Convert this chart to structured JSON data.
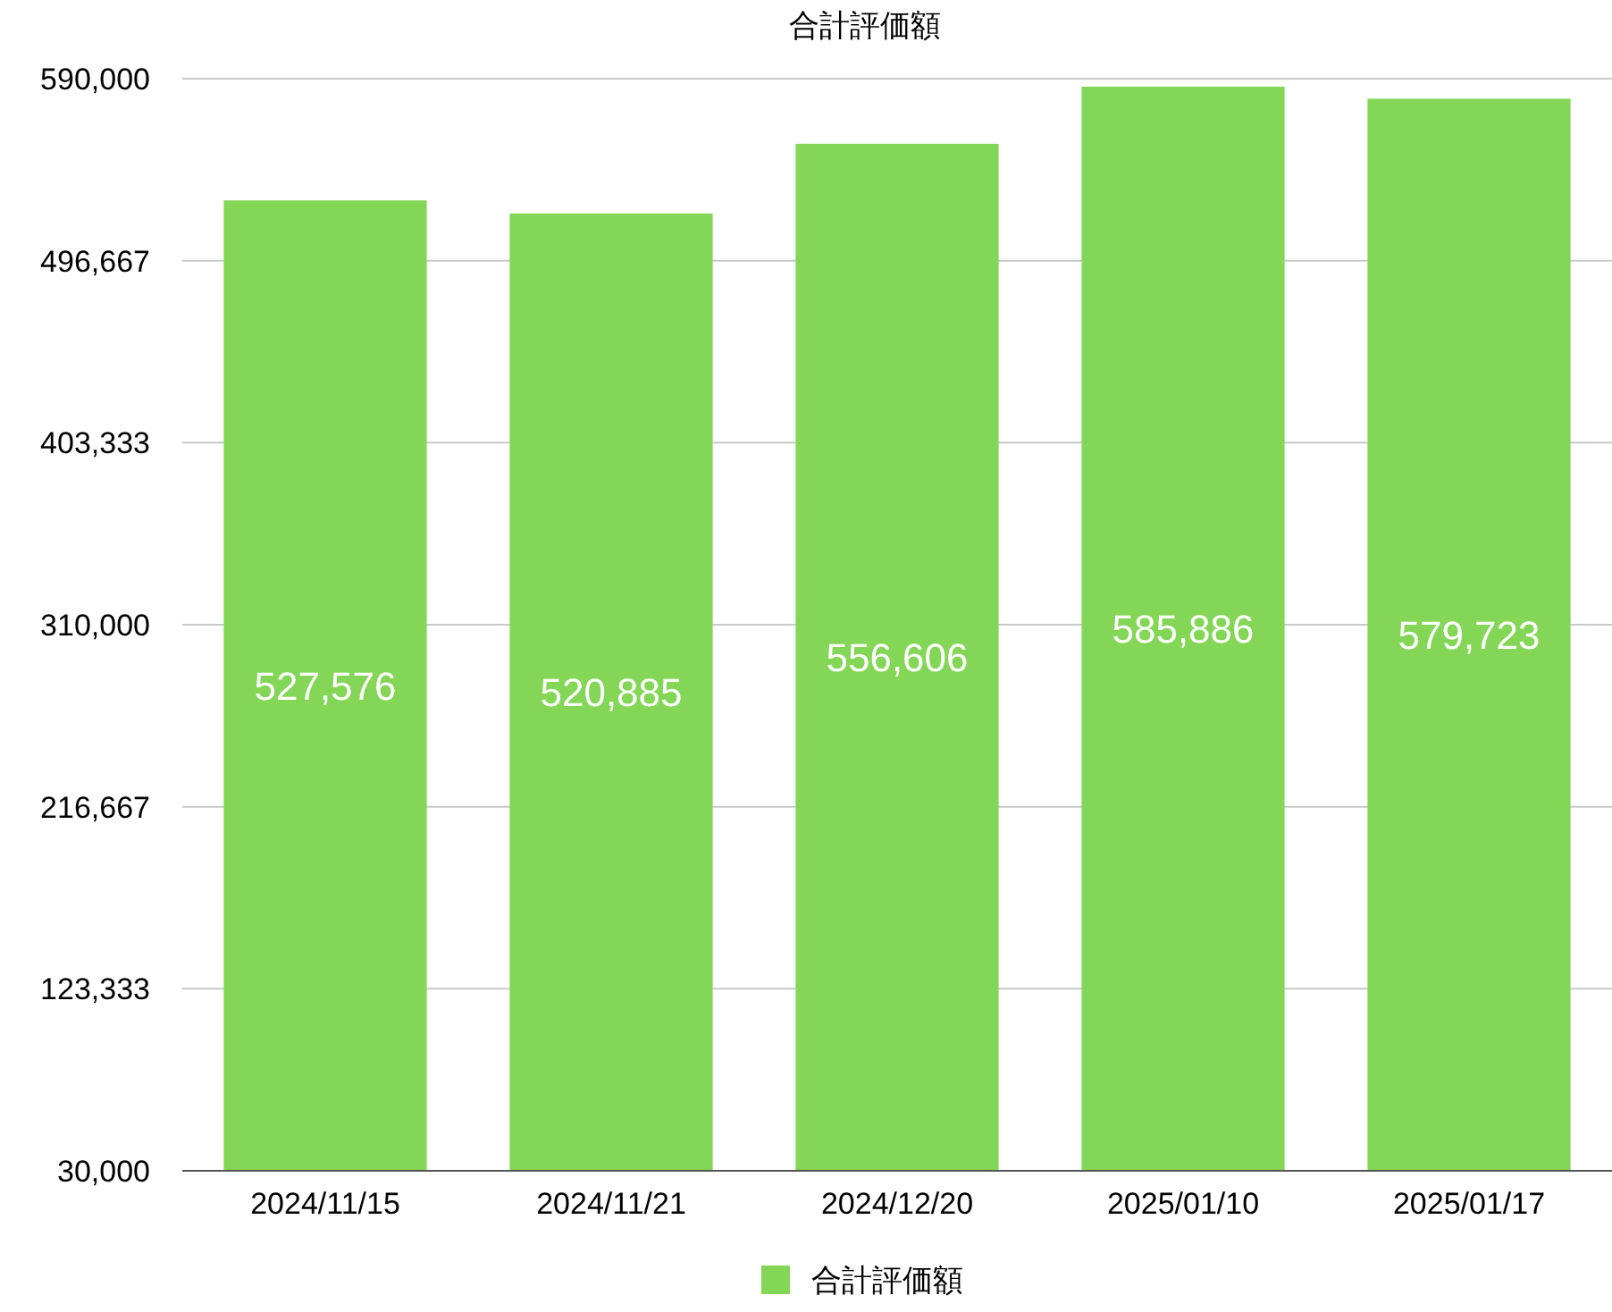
{
  "chart_data": {
    "type": "bar",
    "title": "合計評価額",
    "categories": [
      "2024/11/15",
      "2024/11/21",
      "2024/12/20",
      "2025/01/10",
      "2025/01/17"
    ],
    "series": [
      {
        "name": "合計評価額",
        "color": "#84d657",
        "values": [
          527576,
          520885,
          556606,
          585886,
          579723
        ],
        "value_labels": [
          "527,576",
          "520,885",
          "556,606",
          "585,886",
          "579,723"
        ]
      }
    ],
    "ylim": [
      30000,
      590000
    ],
    "yticks": [
      {
        "value": 30000,
        "label": "30,000"
      },
      {
        "value": 123333.33,
        "label": "123,333"
      },
      {
        "value": 216666.67,
        "label": "216,667"
      },
      {
        "value": 310000,
        "label": "310,000"
      },
      {
        "value": 403333.33,
        "label": "403,333"
      },
      {
        "value": 496666.67,
        "label": "496,667"
      },
      {
        "value": 590000,
        "label": "590,000"
      }
    ],
    "grid": "y",
    "legend": "bottom"
  }
}
